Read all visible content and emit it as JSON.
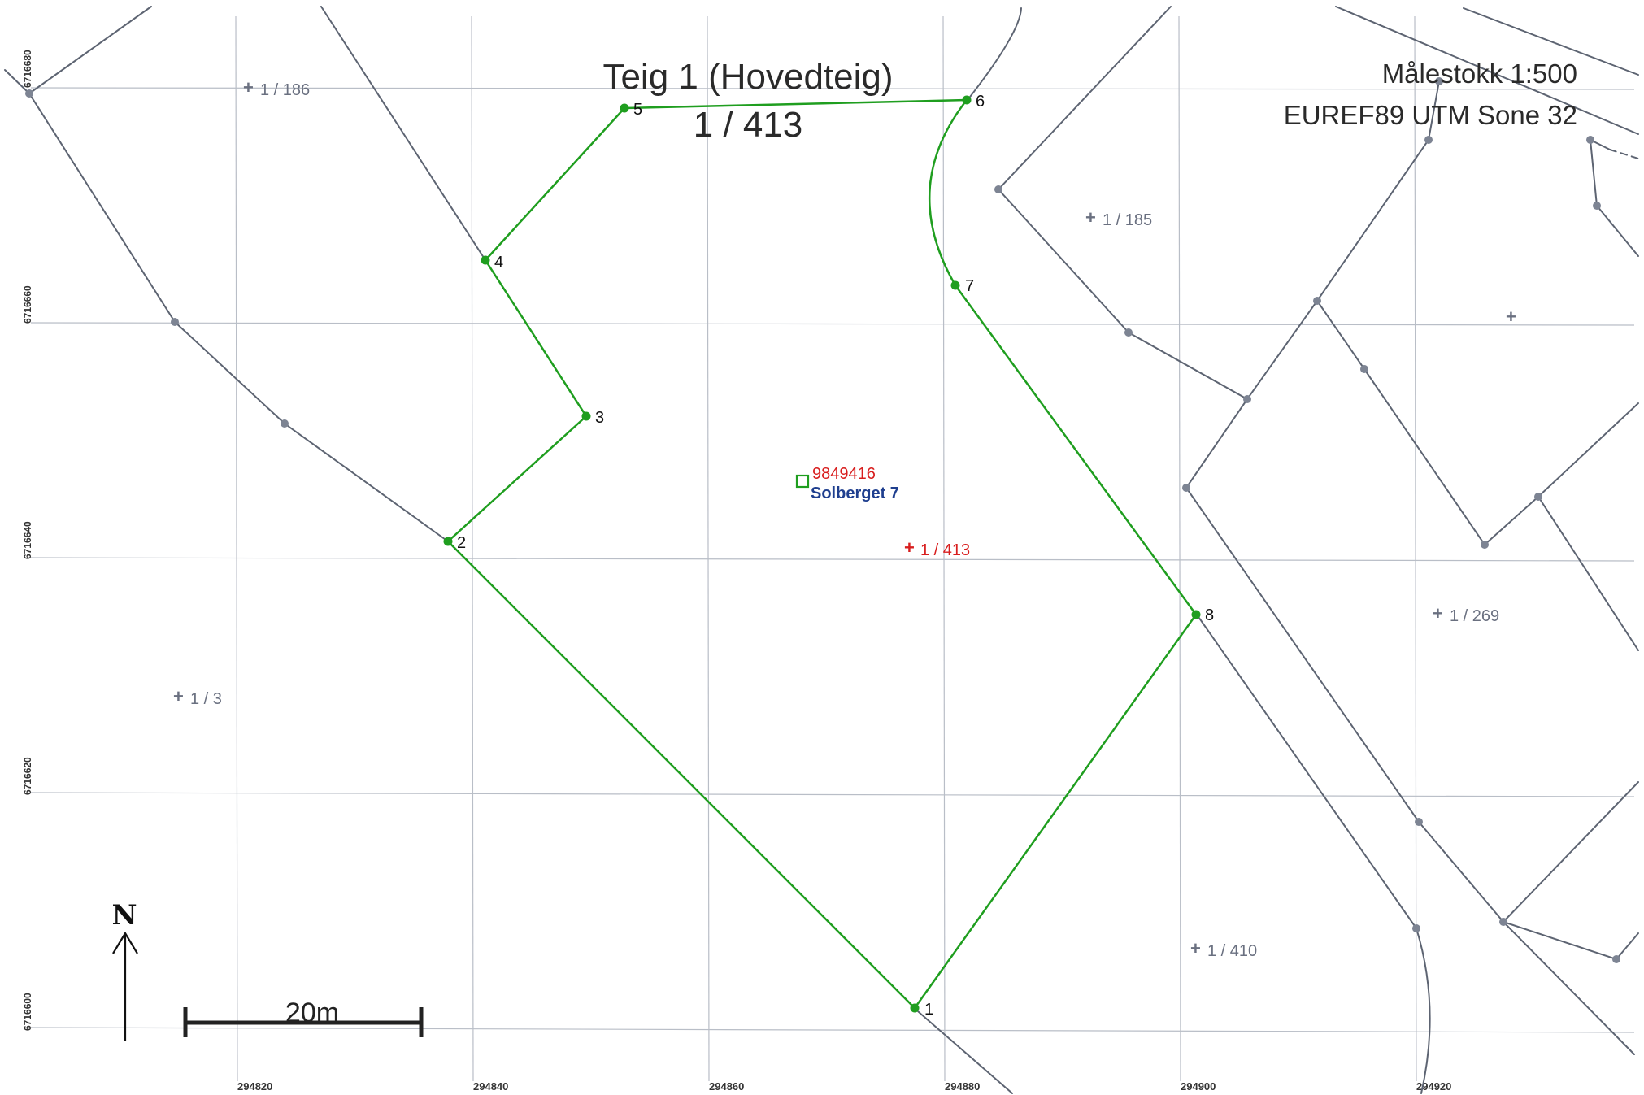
{
  "title": {
    "line1": "Teig 1 (Hovedteig)",
    "line2": "1 / 413"
  },
  "scale_text": "Målestokk 1:500",
  "crs_text": "EUREF89 UTM Sone 32",
  "north_label": "N",
  "scale_bar_label": "20m",
  "colors": {
    "boundary": "#1f9e1f",
    "neighbor_line": "#5d6472",
    "grid": "#b9bec7",
    "parcel_id_main": "#d81e1e",
    "address": "#1f3f8f",
    "neighbor_label": "#6a7080"
  },
  "grid": {
    "eastings": [
      "294820",
      "294840",
      "294860",
      "294880",
      "294900",
      "294920"
    ],
    "northings": [
      "6716680",
      "6716660",
      "6716640",
      "6716620",
      "6716600"
    ]
  },
  "boundary_points": [
    "1",
    "2",
    "3",
    "4",
    "5",
    "6",
    "7",
    "8"
  ],
  "building": {
    "id": "9849416",
    "address": "Solberget 7",
    "icon": "building-square-icon"
  },
  "main_parcel_label": "1 / 413",
  "neighbor_parcels": [
    "1 / 186",
    "1 / 185",
    "1 / 3",
    "1 / 269",
    "1 / 410",
    ""
  ]
}
